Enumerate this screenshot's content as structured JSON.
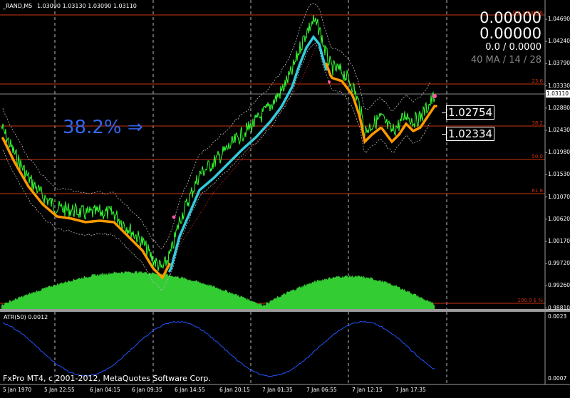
{
  "symbol_header": {
    "symbol": "_RAND,M5",
    "ohlc": "1.03090 1.03130 1.03090 1.03110"
  },
  "info_panel": {
    "value1": "0.00000",
    "value2": "0.00000",
    "ratio": "0.0 / 0.0000",
    "ma_info": "40 MA / 14 / 28"
  },
  "fib_callout": {
    "text": "38.2% ⇒"
  },
  "price_boxes": {
    "upper": "1.02754",
    "lower": "1.02334"
  },
  "fib_levels": [
    {
      "label": "0.0 1.04676"
    },
    {
      "label": "23.6"
    },
    {
      "label": "38.2"
    },
    {
      "label": "50.0"
    },
    {
      "label": "61.8"
    },
    {
      "label": "100.0 $ %"
    }
  ],
  "price_axis": {
    "labels": [
      "1.04690",
      "1.04240",
      "1.03790",
      "1.03330",
      "1.02880",
      "1.02430",
      "1.01980",
      "1.01530",
      "1.01070",
      "1.00620",
      "1.00170",
      "0.99720",
      "0.99260",
      "0.98810"
    ],
    "current_price": "1.03110"
  },
  "indicator_panel": {
    "label": "ATR(50) 0.0012",
    "axis_top": "0.0023",
    "axis_bottom": "0.0007"
  },
  "copyright": "FxPro MT4, c 2001-2012, MetaQuotes Software Corp.",
  "time_axis": {
    "labels": [
      "5 Jan 1970",
      "5 Jan 22:55",
      "6 Jan 04:15",
      "6 Jan 09:35",
      "6 Jan 14:55",
      "6 Jan 20:15",
      "7 Jan 01:35",
      "7 Jan 06:55",
      "7 Jan 12:15",
      "7 Jan 17:35"
    ]
  },
  "colors": {
    "price_line": "#33ff33",
    "ma_orange": "#ff9900",
    "ma_cyan": "#33ccdd",
    "fib_line": "#cc3311",
    "volume": "#33cc33",
    "atr_line": "#2255ff",
    "callout": "#3366ee"
  }
}
